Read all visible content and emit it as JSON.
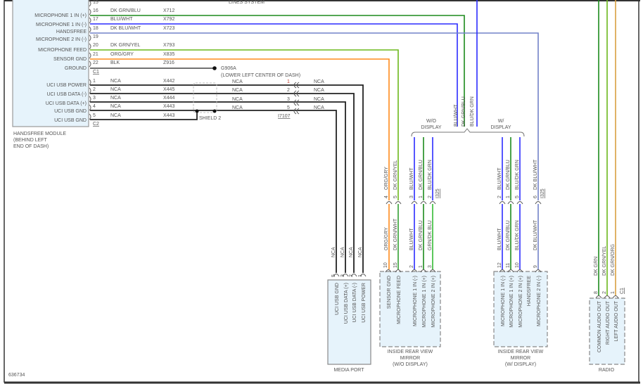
{
  "header_fragment": "LINES SYSTEM",
  "figure_id": "636734",
  "wire_colors": {
    "DK GRN/BLU": "#1c8a1c",
    "BLU/WHT": "#2b2bff",
    "DK BLU/WHT": "#7282c8",
    "DK GRN/YEL": "#6cb81c",
    "ORG/GRY": "#ff8a1c",
    "BLK": "#444444",
    "NCA": "#222222",
    "DK GRN/WHT": "#33a033",
    "GRN/DK BLU": "#33bb33",
    "BLU/DK GRN": "#2b2bff",
    "DK GRN": "#1c8a1c",
    "DK GRN/ORG": "#d9a040"
  },
  "handsfree_module": {
    "name_lines": [
      "HANDSFREE MODULE",
      "(BEHIND LEFT",
      "END OF DASH)"
    ],
    "pin_labels": [
      "MICROPHONE 1 IN (+)",
      "MICROPHONE 1 IN (-)",
      "HANDSFREE",
      "MICROPHONE 2 IN (-)",
      "MICROPHONE FEED",
      "SENSOR GND",
      "GROUND",
      "UCI USB POWER",
      "UCI USB DATA (-)",
      "UCI USB DATA (+)",
      "UCI USB GND",
      "UCI USB GND"
    ],
    "c1_label": "C1",
    "c2_label": "C2",
    "c1_pins": [
      {
        "pin": "15",
        "color": "",
        "circuit": ""
      },
      {
        "pin": "16",
        "color": "DK GRN/BLU",
        "circuit": "X712"
      },
      {
        "pin": "17",
        "color": "BLU/WHT",
        "circuit": "X792"
      },
      {
        "pin": "18",
        "color": "DK BLU/WHT",
        "circuit": "X723"
      },
      {
        "pin": "19",
        "color": "",
        "circuit": ""
      },
      {
        "pin": "20",
        "color": "DK GRN/YEL",
        "circuit": "X793"
      },
      {
        "pin": "21",
        "color": "ORG/GRY",
        "circuit": "X835"
      },
      {
        "pin": "22",
        "color": "BLK",
        "circuit": "Z916"
      }
    ],
    "c2_pins": [
      {
        "pin": "1",
        "color": "NCA",
        "circuit": "X442"
      },
      {
        "pin": "2",
        "color": "NCA",
        "circuit": "X445"
      },
      {
        "pin": "3",
        "color": "NCA",
        "circuit": "X444"
      },
      {
        "pin": "4",
        "color": "NCA",
        "circuit": "X443"
      },
      {
        "pin": "5",
        "color": "NCA",
        "circuit": "X443"
      }
    ]
  },
  "ground": {
    "id": "G906A",
    "location": "(LOWER LEFT CENTER OF DASH)"
  },
  "shield": "SHIELD 2",
  "inline_connector": {
    "id": "I7107",
    "pins": [
      "1",
      "2",
      "3",
      "5"
    ],
    "wire_left": "NCA",
    "wire_right": "NCA"
  },
  "media_port": {
    "name": "MEDIA PORT",
    "pins": [
      {
        "num": "5",
        "wire": "NCA",
        "label": "UCI USB GND"
      },
      {
        "num": "3",
        "wire": "NCA",
        "label": "UCI USB DATA (+)"
      },
      {
        "num": "2",
        "wire": "NCA",
        "label": "UCI USB DATA (-)"
      },
      {
        "num": "1",
        "wire": "NCA",
        "label": "UCI USB POWER"
      }
    ]
  },
  "display_split": {
    "wo_label": [
      "W/O",
      "DISPLAY"
    ],
    "w_label": [
      "W/",
      "DISPLAY"
    ],
    "trunk_wires": [
      "BLU/WHT",
      "DK GRN/BLU",
      "BLU/DK GRN"
    ]
  },
  "connector_I325": {
    "id": "I325",
    "wo_pins": [
      {
        "num": "4",
        "upper": "ORG/GRY",
        "lower": "ORG/GRY"
      },
      {
        "num": "5",
        "upper": "DK GRN/YEL",
        "lower": "DK GRN/WHT"
      },
      {
        "num": "3",
        "upper": "BLU/WHT",
        "lower": "BLU/WHT"
      },
      {
        "num": "1",
        "upper": "DK GRN/BLU",
        "lower": "DK GRN/BLU"
      },
      {
        "num": "2",
        "upper": "BLU/DK GRN",
        "lower": "GRN/DK BLU"
      }
    ],
    "w_pins": [
      {
        "num": "2",
        "upper": "BLU/WHT",
        "lower": "BLU/WHT"
      },
      {
        "num": "1",
        "upper": "DK GRN/BLU",
        "lower": "DK GRN/BLU"
      },
      {
        "num": "5",
        "upper": "BLU/DK GRN",
        "lower": "BLU/DK GRN"
      },
      {
        "num": "6",
        "upper": "DK BLU/WHT",
        "lower": "DK BLU/WHT"
      }
    ]
  },
  "mirror_wo": {
    "name_lines": [
      "INSIDE REAR VIEW",
      "MIRROR",
      "(W/O DISPLAY)"
    ],
    "pins": [
      {
        "num": "10",
        "label": "SENSOR GND"
      },
      {
        "num": "15",
        "label": "MICROPHONE FEED"
      },
      {
        "num": "2",
        "label": "MICROPHONE 1 IN (-)"
      },
      {
        "num": "1",
        "label": "MICROPHONE 1 IN (+)"
      },
      {
        "num": "3",
        "label": "MICROPHONE 2 IN (+)"
      }
    ]
  },
  "mirror_w": {
    "name_lines": [
      "INSIDE REAR VIEW",
      "MIRROR",
      "(W/ DISPLAY)"
    ],
    "pins": [
      {
        "num": "12",
        "label": "MICROPHONE 1 IN (-)"
      },
      {
        "num": "11",
        "label": "MICROPHONE 1 IN (+)"
      },
      {
        "num": "10",
        "label": "MICROPHONE 2 IN (+)"
      },
      {
        "num": "",
        "label": "HANDSFREE"
      },
      {
        "num": "9",
        "label": "MICROPHONE 2 IN (-)"
      }
    ]
  },
  "radio": {
    "name": "RADIO",
    "connector": "C1",
    "pins": [
      {
        "num": "8",
        "wire": "DK GRN",
        "label": "COMMON AUDIO OUT"
      },
      {
        "num": "2",
        "wire": "DK GRN/YEL",
        "label": "RIGHT AUDIO OUT"
      },
      {
        "num": "1",
        "wire": "DK GRN/ORG",
        "label": "LEFT AUDIO OUT"
      }
    ]
  }
}
